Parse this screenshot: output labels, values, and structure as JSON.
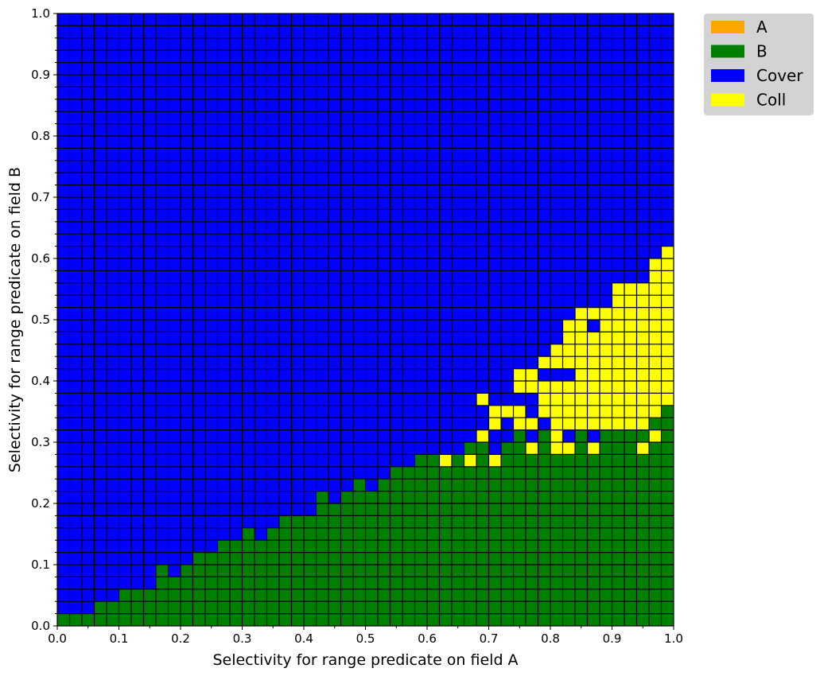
{
  "chart_data": {
    "type": "heatmap",
    "title": "",
    "xlabel": "Selectivity for range predicate on field A",
    "ylabel": "Selectivity for range predicate on field B",
    "xlim": [
      0.0,
      1.0
    ],
    "ylim": [
      0.0,
      1.0
    ],
    "cell_size": 0.02,
    "x_ticks": [
      "0.0",
      "0.1",
      "0.2",
      "0.3",
      "0.4",
      "0.5",
      "0.6",
      "0.7",
      "0.8",
      "0.9",
      "1.0"
    ],
    "y_ticks": [
      "0.0",
      "0.1",
      "0.2",
      "0.3",
      "0.4",
      "0.5",
      "0.6",
      "0.7",
      "0.8",
      "0.9",
      "1.0"
    ],
    "grid_lines": true,
    "legend_position": "outside-top-right",
    "legend": [
      {
        "key": "A",
        "label": "A",
        "color": "#FFA500"
      },
      {
        "key": "B",
        "label": "B",
        "color": "#008000"
      },
      {
        "key": "Cover",
        "label": "Cover",
        "color": "#0000FF"
      },
      {
        "key": "Coll",
        "label": "Coll",
        "color": "#FFFF00"
      }
    ],
    "default_category": "Cover",
    "b_boundary_columns": [
      {
        "x": 0.0,
        "b_max": 0.02
      },
      {
        "x": 0.02,
        "b_max": 0.02
      },
      {
        "x": 0.04,
        "b_max": 0.02
      },
      {
        "x": 0.06,
        "b_max": 0.04
      },
      {
        "x": 0.08,
        "b_max": 0.04
      },
      {
        "x": 0.1,
        "b_max": 0.06
      },
      {
        "x": 0.12,
        "b_max": 0.06
      },
      {
        "x": 0.14,
        "b_max": 0.06
      },
      {
        "x": 0.16,
        "b_max": 0.1
      },
      {
        "x": 0.18,
        "b_max": 0.08
      },
      {
        "x": 0.2,
        "b_max": 0.1
      },
      {
        "x": 0.22,
        "b_max": 0.12
      },
      {
        "x": 0.24,
        "b_max": 0.12
      },
      {
        "x": 0.26,
        "b_max": 0.14
      },
      {
        "x": 0.28,
        "b_max": 0.14
      },
      {
        "x": 0.3,
        "b_max": 0.16
      },
      {
        "x": 0.32,
        "b_max": 0.14
      },
      {
        "x": 0.34,
        "b_max": 0.16
      },
      {
        "x": 0.36,
        "b_max": 0.18
      },
      {
        "x": 0.38,
        "b_max": 0.18
      },
      {
        "x": 0.4,
        "b_max": 0.18
      },
      {
        "x": 0.42,
        "b_max": 0.22
      },
      {
        "x": 0.44,
        "b_max": 0.2
      },
      {
        "x": 0.46,
        "b_max": 0.22
      },
      {
        "x": 0.48,
        "b_max": 0.24
      },
      {
        "x": 0.5,
        "b_max": 0.22
      },
      {
        "x": 0.52,
        "b_max": 0.24
      },
      {
        "x": 0.54,
        "b_max": 0.26
      },
      {
        "x": 0.56,
        "b_max": 0.26
      },
      {
        "x": 0.58,
        "b_max": 0.28
      },
      {
        "x": 0.6,
        "b_max": 0.28
      },
      {
        "x": 0.62,
        "b_max": 0.26
      },
      {
        "x": 0.64,
        "b_max": 0.28
      },
      {
        "x": 0.66,
        "b_max": 0.3
      },
      {
        "x": 0.68,
        "b_max": 0.3
      },
      {
        "x": 0.7,
        "b_max": 0.28
      },
      {
        "x": 0.72,
        "b_max": 0.3
      },
      {
        "x": 0.74,
        "b_max": 0.32
      },
      {
        "x": 0.76,
        "b_max": 0.3
      },
      {
        "x": 0.78,
        "b_max": 0.32
      },
      {
        "x": 0.8,
        "b_max": 0.3
      },
      {
        "x": 0.82,
        "b_max": 0.3
      },
      {
        "x": 0.84,
        "b_max": 0.32
      },
      {
        "x": 0.86,
        "b_max": 0.3
      },
      {
        "x": 0.88,
        "b_max": 0.32
      },
      {
        "x": 0.9,
        "b_max": 0.32
      },
      {
        "x": 0.92,
        "b_max": 0.32
      },
      {
        "x": 0.94,
        "b_max": 0.32
      },
      {
        "x": 0.96,
        "b_max": 0.34
      },
      {
        "x": 0.98,
        "b_max": 0.36
      }
    ],
    "coll_cells": [
      {
        "x": 0.62,
        "y": 0.26
      },
      {
        "x": 0.66,
        "y": 0.26
      },
      {
        "x": 0.7,
        "y": 0.26
      },
      {
        "x": 0.68,
        "y": 0.3
      },
      {
        "x": 0.68,
        "y": 0.36
      },
      {
        "x": 0.7,
        "y": 0.32
      },
      {
        "x": 0.7,
        "y": 0.34
      },
      {
        "x": 0.72,
        "y": 0.34
      },
      {
        "x": 0.74,
        "y": 0.32
      },
      {
        "x": 0.74,
        "y": 0.34
      },
      {
        "x": 0.74,
        "y": 0.38
      },
      {
        "x": 0.74,
        "y": 0.4
      },
      {
        "x": 0.76,
        "y": 0.28
      },
      {
        "x": 0.76,
        "y": 0.32
      },
      {
        "x": 0.76,
        "y": 0.38
      },
      {
        "x": 0.76,
        "y": 0.4
      },
      {
        "x": 0.78,
        "y": 0.34
      },
      {
        "x": 0.78,
        "y": 0.36
      },
      {
        "x": 0.78,
        "y": 0.38
      },
      {
        "x": 0.78,
        "y": 0.42
      },
      {
        "x": 0.8,
        "y": 0.28
      },
      {
        "x": 0.8,
        "y": 0.3
      },
      {
        "x": 0.8,
        "y": 0.32
      },
      {
        "x": 0.8,
        "y": 0.34
      },
      {
        "x": 0.8,
        "y": 0.36
      },
      {
        "x": 0.8,
        "y": 0.38
      },
      {
        "x": 0.8,
        "y": 0.42
      },
      {
        "x": 0.8,
        "y": 0.44
      },
      {
        "x": 0.82,
        "y": 0.28
      },
      {
        "x": 0.82,
        "y": 0.32
      },
      {
        "x": 0.82,
        "y": 0.34
      },
      {
        "x": 0.82,
        "y": 0.36
      },
      {
        "x": 0.82,
        "y": 0.38
      },
      {
        "x": 0.82,
        "y": 0.42
      },
      {
        "x": 0.82,
        "y": 0.44
      },
      {
        "x": 0.82,
        "y": 0.46
      },
      {
        "x": 0.82,
        "y": 0.48
      },
      {
        "x": 0.84,
        "y": 0.32
      },
      {
        "x": 0.84,
        "y": 0.34
      },
      {
        "x": 0.84,
        "y": 0.36
      },
      {
        "x": 0.84,
        "y": 0.38
      },
      {
        "x": 0.84,
        "y": 0.4
      },
      {
        "x": 0.84,
        "y": 0.42
      },
      {
        "x": 0.84,
        "y": 0.44
      },
      {
        "x": 0.84,
        "y": 0.46
      },
      {
        "x": 0.84,
        "y": 0.48
      },
      {
        "x": 0.84,
        "y": 0.5
      },
      {
        "x": 0.86,
        "y": 0.28
      },
      {
        "x": 0.86,
        "y": 0.32
      },
      {
        "x": 0.86,
        "y": 0.34
      },
      {
        "x": 0.86,
        "y": 0.36
      },
      {
        "x": 0.86,
        "y": 0.38
      },
      {
        "x": 0.86,
        "y": 0.4
      },
      {
        "x": 0.86,
        "y": 0.42
      },
      {
        "x": 0.86,
        "y": 0.44
      },
      {
        "x": 0.86,
        "y": 0.46
      },
      {
        "x": 0.86,
        "y": 0.5
      },
      {
        "x": 0.88,
        "y": 0.32
      },
      {
        "x": 0.88,
        "y": 0.34
      },
      {
        "x": 0.88,
        "y": 0.36
      },
      {
        "x": 0.88,
        "y": 0.38
      },
      {
        "x": 0.88,
        "y": 0.4
      },
      {
        "x": 0.88,
        "y": 0.42
      },
      {
        "x": 0.88,
        "y": 0.44
      },
      {
        "x": 0.88,
        "y": 0.46
      },
      {
        "x": 0.88,
        "y": 0.48
      },
      {
        "x": 0.88,
        "y": 0.5
      },
      {
        "x": 0.9,
        "y": 0.32
      },
      {
        "x": 0.9,
        "y": 0.34
      },
      {
        "x": 0.9,
        "y": 0.36
      },
      {
        "x": 0.9,
        "y": 0.38
      },
      {
        "x": 0.9,
        "y": 0.4
      },
      {
        "x": 0.9,
        "y": 0.42
      },
      {
        "x": 0.9,
        "y": 0.44
      },
      {
        "x": 0.9,
        "y": 0.46
      },
      {
        "x": 0.9,
        "y": 0.48
      },
      {
        "x": 0.9,
        "y": 0.5
      },
      {
        "x": 0.9,
        "y": 0.52
      },
      {
        "x": 0.9,
        "y": 0.54
      },
      {
        "x": 0.92,
        "y": 0.32
      },
      {
        "x": 0.92,
        "y": 0.34
      },
      {
        "x": 0.92,
        "y": 0.36
      },
      {
        "x": 0.92,
        "y": 0.38
      },
      {
        "x": 0.92,
        "y": 0.4
      },
      {
        "x": 0.92,
        "y": 0.42
      },
      {
        "x": 0.92,
        "y": 0.44
      },
      {
        "x": 0.92,
        "y": 0.46
      },
      {
        "x": 0.92,
        "y": 0.48
      },
      {
        "x": 0.92,
        "y": 0.5
      },
      {
        "x": 0.92,
        "y": 0.52
      },
      {
        "x": 0.92,
        "y": 0.54
      },
      {
        "x": 0.94,
        "y": 0.28
      },
      {
        "x": 0.94,
        "y": 0.32
      },
      {
        "x": 0.94,
        "y": 0.34
      },
      {
        "x": 0.94,
        "y": 0.36
      },
      {
        "x": 0.94,
        "y": 0.38
      },
      {
        "x": 0.94,
        "y": 0.4
      },
      {
        "x": 0.94,
        "y": 0.42
      },
      {
        "x": 0.94,
        "y": 0.44
      },
      {
        "x": 0.94,
        "y": 0.46
      },
      {
        "x": 0.94,
        "y": 0.48
      },
      {
        "x": 0.94,
        "y": 0.5
      },
      {
        "x": 0.94,
        "y": 0.52
      },
      {
        "x": 0.94,
        "y": 0.54
      },
      {
        "x": 0.96,
        "y": 0.3
      },
      {
        "x": 0.96,
        "y": 0.34
      },
      {
        "x": 0.96,
        "y": 0.36
      },
      {
        "x": 0.96,
        "y": 0.38
      },
      {
        "x": 0.96,
        "y": 0.4
      },
      {
        "x": 0.96,
        "y": 0.42
      },
      {
        "x": 0.96,
        "y": 0.44
      },
      {
        "x": 0.96,
        "y": 0.46
      },
      {
        "x": 0.96,
        "y": 0.48
      },
      {
        "x": 0.96,
        "y": 0.5
      },
      {
        "x": 0.96,
        "y": 0.52
      },
      {
        "x": 0.96,
        "y": 0.54
      },
      {
        "x": 0.96,
        "y": 0.56
      },
      {
        "x": 0.96,
        "y": 0.58
      },
      {
        "x": 0.98,
        "y": 0.36
      },
      {
        "x": 0.98,
        "y": 0.38
      },
      {
        "x": 0.98,
        "y": 0.4
      },
      {
        "x": 0.98,
        "y": 0.42
      },
      {
        "x": 0.98,
        "y": 0.44
      },
      {
        "x": 0.98,
        "y": 0.46
      },
      {
        "x": 0.98,
        "y": 0.48
      },
      {
        "x": 0.98,
        "y": 0.5
      },
      {
        "x": 0.98,
        "y": 0.52
      },
      {
        "x": 0.98,
        "y": 0.54
      },
      {
        "x": 0.98,
        "y": 0.56
      },
      {
        "x": 0.98,
        "y": 0.58
      },
      {
        "x": 0.98,
        "y": 0.6
      }
    ]
  }
}
